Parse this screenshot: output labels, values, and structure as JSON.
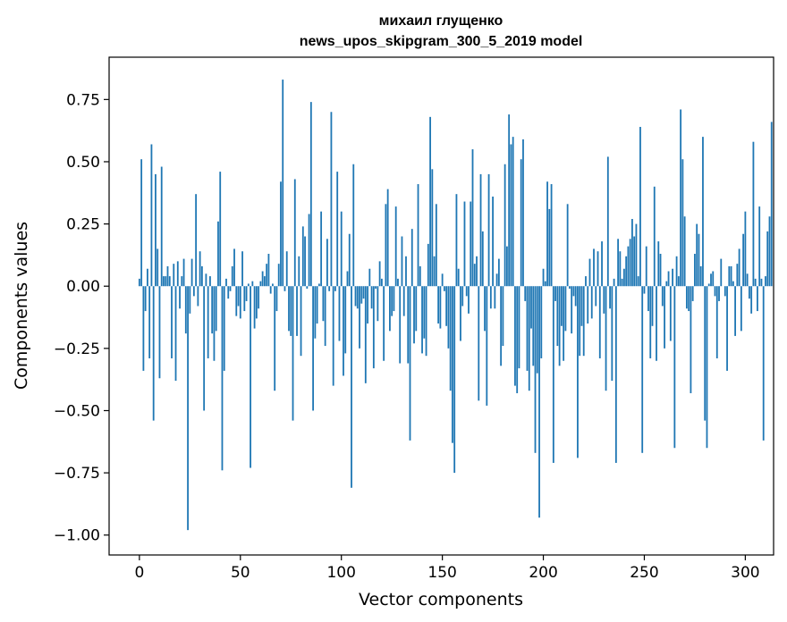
{
  "chart_data": {
    "type": "bar",
    "title": "михаил глущенко",
    "subtitle": "news_upos_skipgram_300_5_2019 model",
    "xlabel": "Vector components",
    "ylabel": "Components values",
    "xlim": [
      -15,
      314
    ],
    "ylim": [
      -1.08,
      0.92
    ],
    "xticks": [
      0,
      50,
      100,
      150,
      200,
      250,
      300
    ],
    "xtick_labels": [
      "0",
      "50",
      "100",
      "150",
      "200",
      "250",
      "300"
    ],
    "yticks": [
      -1.0,
      -0.75,
      -0.5,
      -0.25,
      0.0,
      0.25,
      0.5,
      0.75
    ],
    "ytick_labels": [
      "−1.00",
      "−0.75",
      "−0.50",
      "−0.25",
      "0.00",
      "0.25",
      "0.50",
      "0.75"
    ],
    "bar_color": "#1f77b4",
    "series": [
      {
        "name": "vector",
        "x_start": 0,
        "values": [
          0.03,
          0.51,
          -0.34,
          -0.1,
          0.07,
          -0.29,
          0.57,
          -0.54,
          0.45,
          0.15,
          -0.37,
          0.48,
          0.04,
          0.04,
          0.08,
          0.04,
          -0.29,
          0.09,
          -0.38,
          0.1,
          -0.09,
          0.04,
          0.11,
          -0.19,
          -0.98,
          -0.11,
          0.11,
          -0.04,
          0.37,
          -0.08,
          0.14,
          0.08,
          -0.5,
          0.05,
          -0.29,
          0.04,
          -0.19,
          -0.3,
          -0.18,
          0.26,
          0.46,
          -0.74,
          -0.34,
          0.03,
          -0.05,
          -0.02,
          0.08,
          0.15,
          -0.12,
          -0.08,
          -0.13,
          0.14,
          -0.1,
          -0.06,
          0.01,
          -0.73,
          0.02,
          -0.17,
          -0.13,
          -0.09,
          0.02,
          0.06,
          0.04,
          0.09,
          0.13,
          -0.03,
          0.01,
          -0.42,
          -0.1,
          0.09,
          0.42,
          0.83,
          -0.02,
          0.14,
          -0.18,
          -0.2,
          -0.54,
          0.43,
          -0.2,
          0.12,
          -0.28,
          0.24,
          0.2,
          -0.01,
          0.29,
          0.74,
          -0.5,
          -0.21,
          -0.15,
          0.01,
          0.3,
          -0.14,
          -0.24,
          0.19,
          -0.02,
          0.7,
          -0.4,
          -0.02,
          0.46,
          -0.22,
          0.3,
          -0.36,
          -0.27,
          0.06,
          0.21,
          -0.81,
          0.49,
          -0.08,
          -0.09,
          -0.25,
          -0.07,
          -0.05,
          -0.39,
          -0.15,
          0.07,
          -0.09,
          -0.33,
          -0.01,
          -0.14,
          0.1,
          0.03,
          -0.3,
          0.33,
          0.39,
          -0.18,
          -0.12,
          -0.1,
          0.32,
          0.03,
          -0.31,
          0.2,
          -0.12,
          0.12,
          -0.31,
          -0.62,
          0.23,
          -0.23,
          -0.18,
          0.41,
          0.08,
          -0.27,
          -0.21,
          -0.28,
          0.17,
          0.68,
          0.47,
          0.12,
          0.33,
          -0.15,
          -0.17,
          0.05,
          -0.02,
          -0.16,
          -0.25,
          -0.42,
          -0.63,
          -0.75,
          0.37,
          0.07,
          -0.22,
          -0.08,
          0.34,
          -0.04,
          -0.11,
          0.34,
          0.55,
          0.09,
          0.12,
          -0.46,
          0.45,
          0.22,
          -0.18,
          -0.48,
          0.45,
          -0.09,
          0.36,
          -0.09,
          0.05,
          0.11,
          -0.32,
          -0.24,
          0.49,
          0.16,
          0.69,
          0.57,
          0.6,
          -0.4,
          -0.43,
          -0.33,
          0.51,
          0.59,
          -0.06,
          -0.34,
          -0.42,
          -0.17,
          -0.32,
          -0.67,
          -0.35,
          -0.93,
          -0.29,
          0.07,
          0.02,
          0.42,
          0.31,
          0.41,
          -0.71,
          -0.06,
          -0.24,
          -0.32,
          -0.16,
          -0.3,
          -0.18,
          0.33,
          -0.01,
          -0.19,
          -0.04,
          -0.08,
          -0.69,
          -0.28,
          -0.16,
          -0.28,
          0.04,
          -0.15,
          0.11,
          -0.13,
          0.15,
          -0.08,
          0.14,
          -0.29,
          0.18,
          -0.11,
          -0.42,
          0.52,
          -0.09,
          -0.38,
          0.03,
          -0.71,
          0.19,
          0.14,
          0.03,
          0.07,
          0.12,
          0.16,
          0.19,
          0.27,
          0.2,
          0.25,
          0.04,
          0.64,
          -0.67,
          -0.03,
          0.16,
          -0.1,
          -0.29,
          -0.16,
          0.4,
          -0.3,
          0.18,
          0.13,
          -0.08,
          -0.25,
          0.02,
          0.06,
          -0.22,
          0.07,
          -0.65,
          0.12,
          0.04,
          0.71,
          0.51,
          0.28,
          -0.09,
          -0.1,
          -0.43,
          -0.06,
          0.13,
          0.25,
          0.21,
          0.08,
          0.6,
          -0.54,
          -0.65,
          0.01,
          0.05,
          0.06,
          -0.04,
          -0.29,
          -0.06,
          0.11,
          0.0,
          -0.04,
          -0.34,
          0.08,
          0.08,
          0.02,
          -0.2,
          0.09,
          0.15,
          -0.18,
          0.21,
          0.3,
          0.05,
          -0.05,
          -0.11,
          0.58,
          0.03,
          -0.1,
          0.32,
          0.03,
          -0.62,
          0.04,
          0.22,
          0.28,
          0.66
        ]
      }
    ]
  }
}
